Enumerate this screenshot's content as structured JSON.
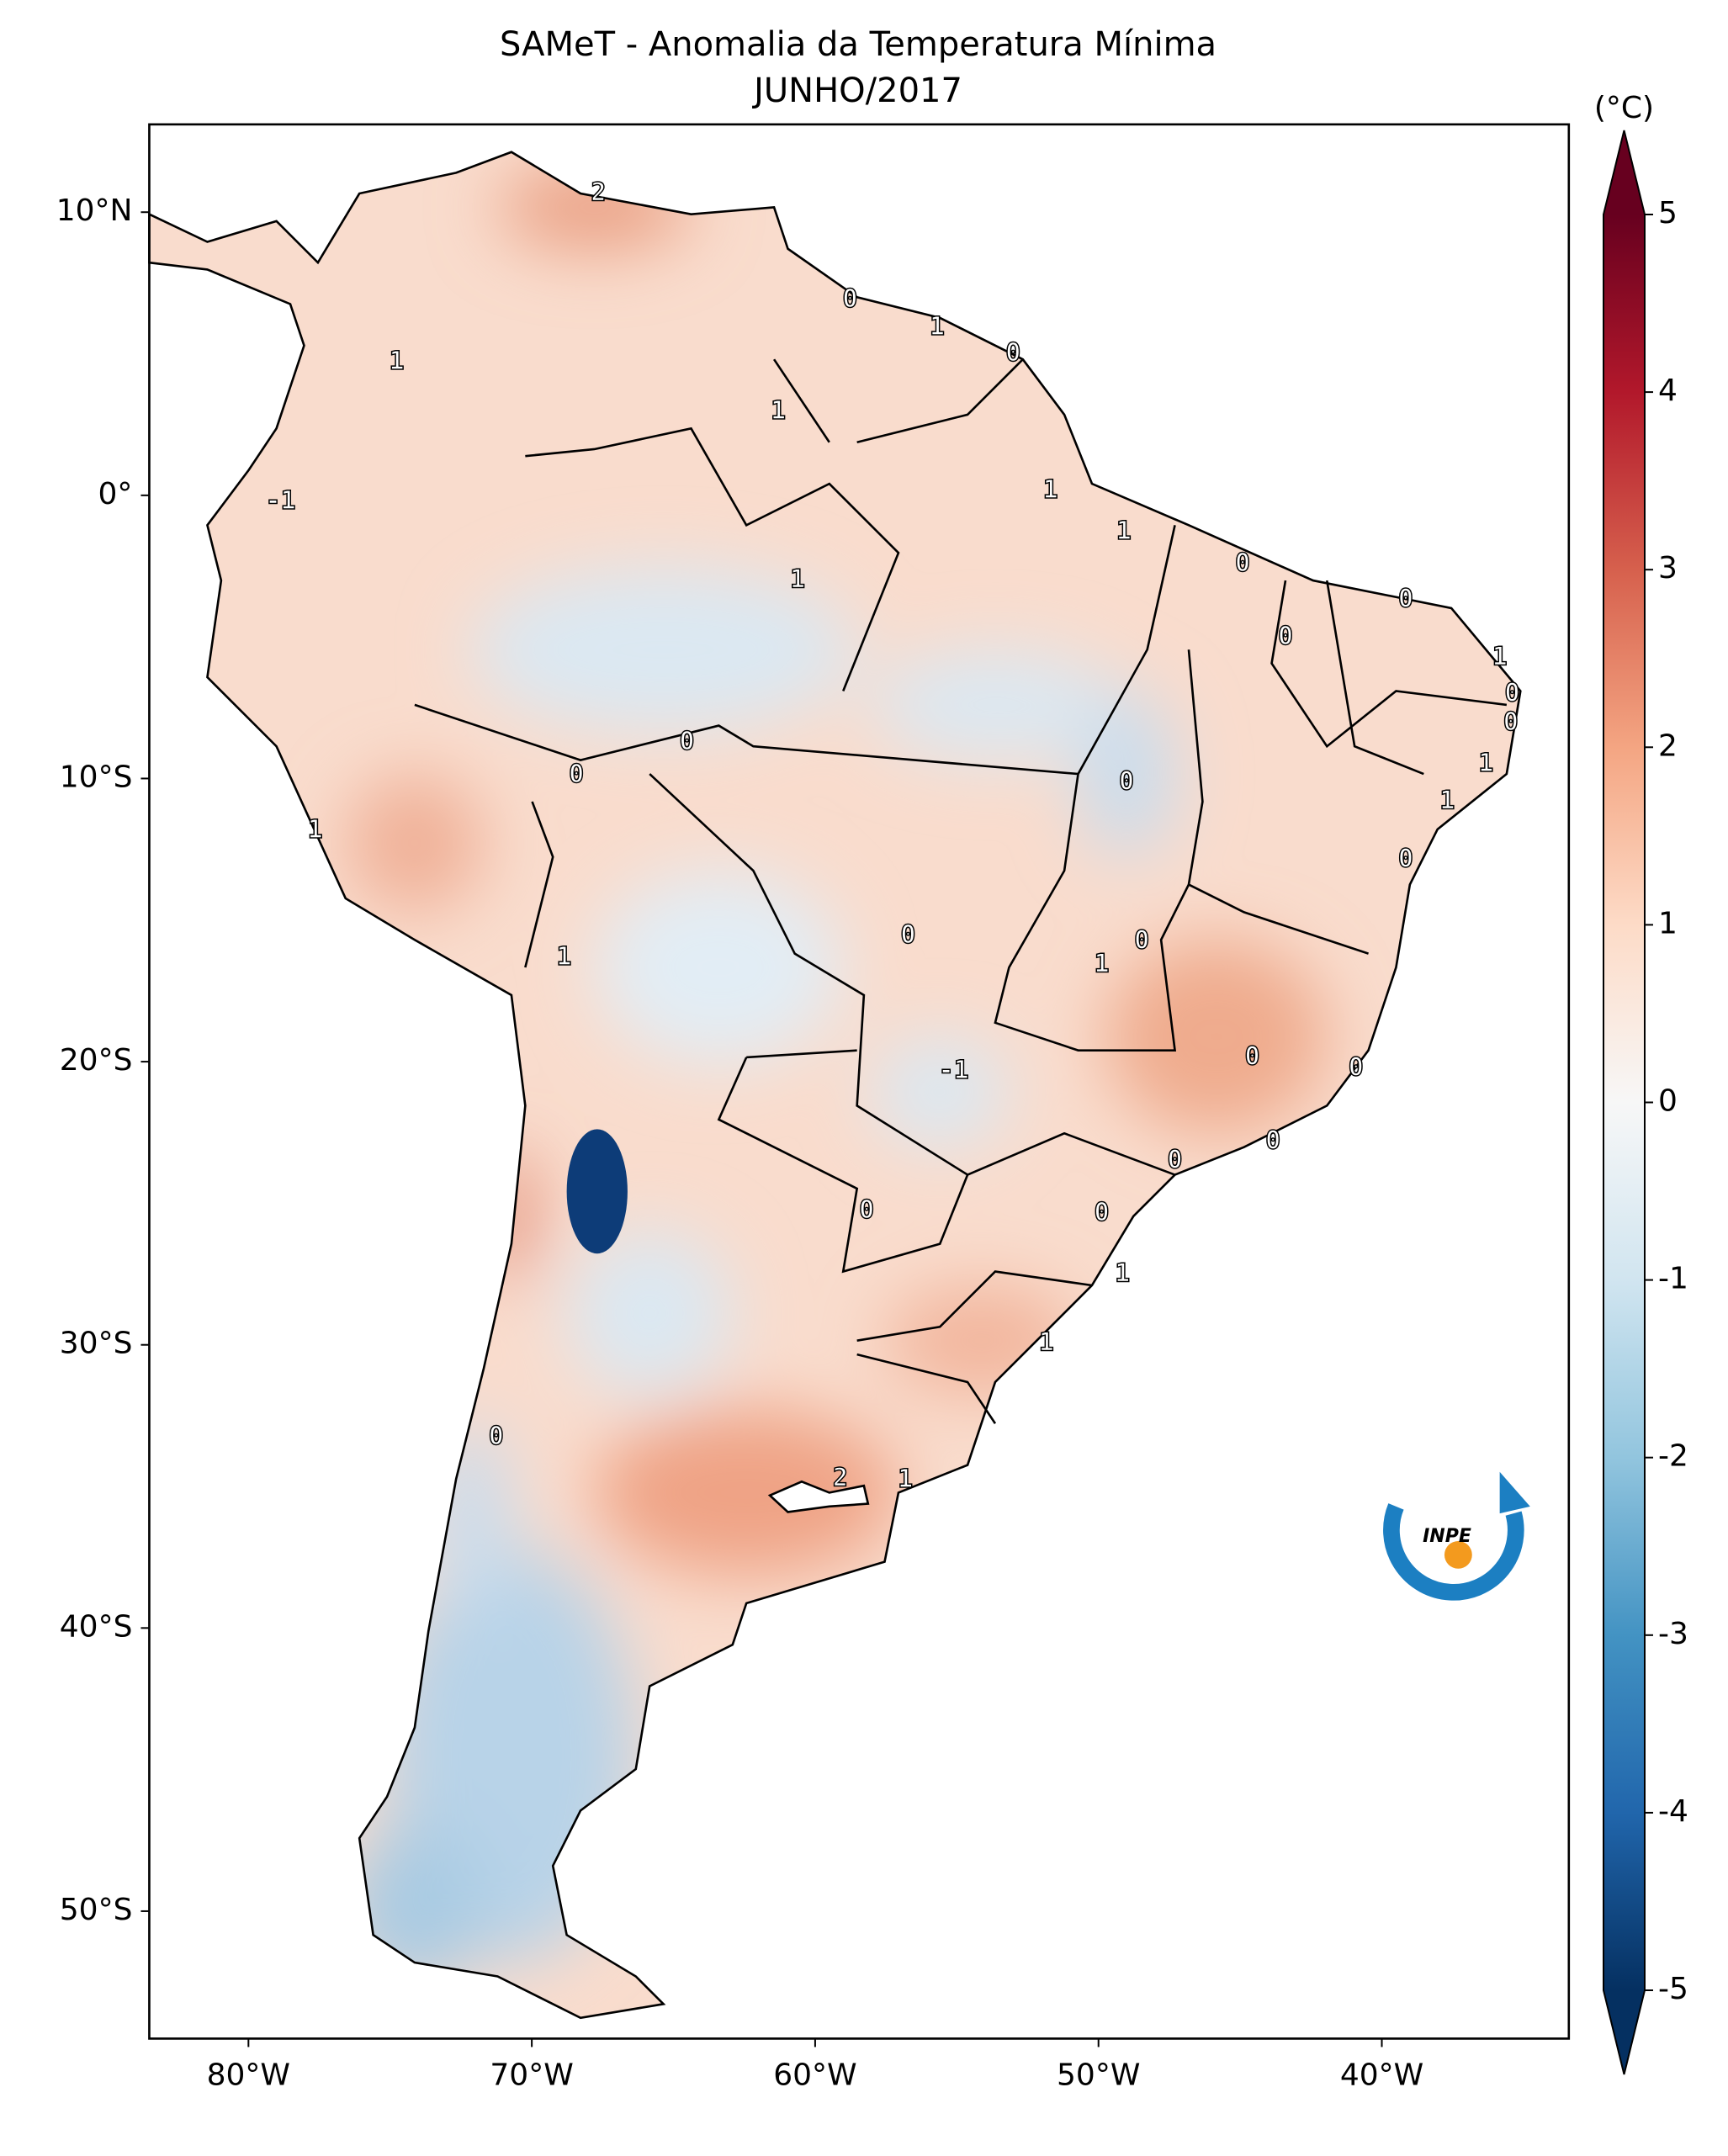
{
  "chart_data": {
    "type": "map",
    "title": "SAMeT - Anomalia da Temperatura Mínima",
    "subtitle": "JUNHO/2017",
    "xlim": [
      -83.5,
      -33.4
    ],
    "ylim": [
      -54.5,
      13.1
    ],
    "xticks": [
      {
        "value": -80,
        "label": "80°W"
      },
      {
        "value": -70,
        "label": "70°W"
      },
      {
        "value": -60,
        "label": "60°W"
      },
      {
        "value": -50,
        "label": "50°W"
      },
      {
        "value": -40,
        "label": "40°W"
      }
    ],
    "yticks": [
      {
        "value": 10,
        "label": "10°N"
      },
      {
        "value": 0,
        "label": "0°"
      },
      {
        "value": -10,
        "label": "10°S"
      },
      {
        "value": -20,
        "label": "20°S"
      },
      {
        "value": -30,
        "label": "30°S"
      },
      {
        "value": -40,
        "label": "40°S"
      },
      {
        "value": -50,
        "label": "50°S"
      }
    ],
    "colorbar": {
      "label": "(°C)",
      "clim": [
        -5,
        5
      ],
      "ticks": [
        5,
        4,
        3,
        2,
        1,
        0,
        -1,
        -2,
        -3,
        -4,
        -5
      ],
      "colors": [
        "#053061",
        "#2166ac",
        "#4393c3",
        "#92c5de",
        "#d1e5f0",
        "#f7f7f7",
        "#fddbc7",
        "#f4a582",
        "#d6604d",
        "#b2182b",
        "#67001f"
      ]
    },
    "contour_labels": [
      2,
      0,
      1,
      0,
      1,
      1,
      1,
      -1,
      1,
      0,
      1,
      0,
      0,
      1,
      0,
      0,
      0,
      0,
      0,
      1,
      1,
      1,
      0,
      0,
      0,
      1,
      1,
      0,
      -1,
      0,
      0,
      0,
      0,
      0,
      1,
      1,
      0,
      2,
      1
    ],
    "logo_text": "INPE"
  }
}
